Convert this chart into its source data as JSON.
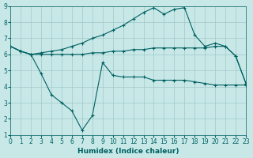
{
  "xlabel": "Humidex (Indice chaleur)",
  "ylabel": "",
  "bg_color": "#c8e8e8",
  "line_color": "#006060",
  "xlim": [
    0,
    23
  ],
  "ylim": [
    1,
    9
  ],
  "x": [
    0,
    1,
    2,
    3,
    4,
    5,
    6,
    7,
    8,
    9,
    10,
    11,
    12,
    13,
    14,
    15,
    16,
    17,
    18,
    19,
    20,
    21,
    22,
    23
  ],
  "line1": [
    6.5,
    6.2,
    6.0,
    4.8,
    3.5,
    3.0,
    2.5,
    1.3,
    2.2,
    5.5,
    4.7,
    4.6,
    4.6,
    4.6,
    4.4,
    4.4,
    4.4,
    4.4,
    4.3,
    4.2,
    4.1,
    4.1,
    4.1,
    4.1
  ],
  "line2": [
    6.5,
    6.2,
    6.0,
    6.0,
    6.0,
    6.0,
    6.0,
    6.0,
    6.1,
    6.1,
    6.2,
    6.2,
    6.3,
    6.3,
    6.4,
    6.4,
    6.4,
    6.4,
    6.4,
    6.4,
    6.5,
    6.5,
    5.9,
    4.2
  ],
  "line3": [
    6.5,
    6.2,
    6.0,
    6.1,
    6.2,
    6.3,
    6.5,
    6.7,
    7.0,
    7.2,
    7.5,
    7.8,
    8.2,
    8.6,
    8.9,
    8.5,
    8.8,
    8.9,
    7.2,
    6.5,
    6.7,
    6.5,
    5.9,
    4.2
  ]
}
